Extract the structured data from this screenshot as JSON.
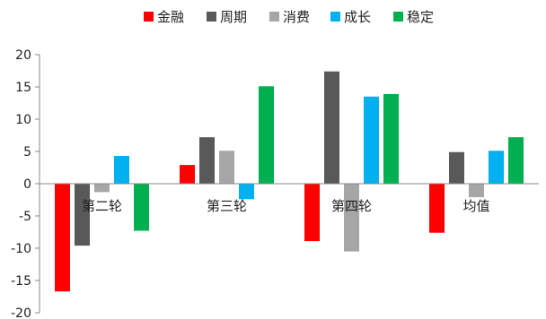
{
  "chart_data": {
    "type": "bar",
    "categories": [
      "第二轮",
      "第三轮",
      "第四轮",
      "均值"
    ],
    "series": [
      {
        "name": "金融",
        "color": "#ff0000",
        "values": [
          -16.7,
          2.9,
          -8.9,
          -7.6
        ]
      },
      {
        "name": "周期",
        "color": "#595959",
        "values": [
          -9.6,
          7.2,
          17.4,
          4.9
        ]
      },
      {
        "name": "消费",
        "color": "#a6a6a6",
        "values": [
          -1.3,
          5.1,
          -10.5,
          -2.1
        ]
      },
      {
        "name": "成长",
        "color": "#00b0f0",
        "values": [
          4.3,
          -2.4,
          13.5,
          5.1
        ]
      },
      {
        "name": "稳定",
        "color": "#00b050",
        "values": [
          -7.3,
          15.1,
          13.9,
          7.2
        ]
      }
    ],
    "ylim": [
      -20,
      20
    ],
    "yticks": [
      "20",
      "15",
      "10",
      "5",
      "0",
      "-5",
      "-10",
      "-15",
      "-20"
    ],
    "legend_position": "top",
    "grid": false
  }
}
